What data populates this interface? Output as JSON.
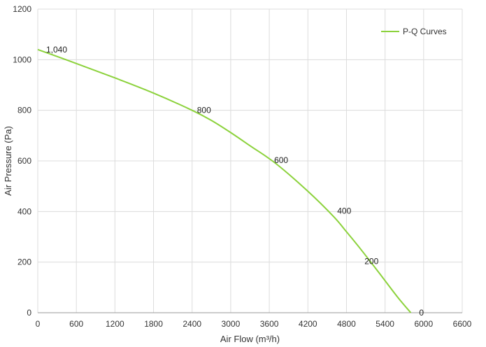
{
  "chart_data": {
    "type": "line",
    "title": "",
    "xlabel": "Air Flow  (m³/h)",
    "ylabel": "Air Pressure  (Pa)",
    "xlim": [
      0,
      6600
    ],
    "ylim": [
      0,
      1200
    ],
    "x_ticks": [
      "0",
      "600",
      "1200",
      "1800",
      "2400",
      "3000",
      "3600",
      "4200",
      "4800",
      "5400",
      "6000",
      "6600"
    ],
    "y_ticks": [
      "0",
      "200",
      "400",
      "600",
      "800",
      "1000",
      "1200"
    ],
    "grid": true,
    "legend_position": "top-right",
    "series": [
      {
        "name": "P-Q Curves",
        "color": "#8cd23c",
        "x": [
          0,
          600,
          1200,
          1800,
          2400,
          2700,
          3000,
          3300,
          3700,
          4200,
          4600,
          4800,
          5000,
          5300,
          5600,
          5800
        ],
        "y": [
          1040,
          985,
          928,
          868,
          800,
          760,
          712,
          660,
          590,
          480,
          380,
          320,
          258,
          160,
          60,
          0
        ]
      }
    ],
    "data_labels": [
      {
        "text": "1,040",
        "x": 0,
        "y": 1040
      },
      {
        "text": "800",
        "x": 2400,
        "y": 800
      },
      {
        "text": "600",
        "x": 3600,
        "y": 600
      },
      {
        "text": "400",
        "x": 4700,
        "y": 400
      },
      {
        "text": "200",
        "x": 5200,
        "y": 200
      },
      {
        "text": "0",
        "x": 5800,
        "y": 0
      }
    ]
  }
}
